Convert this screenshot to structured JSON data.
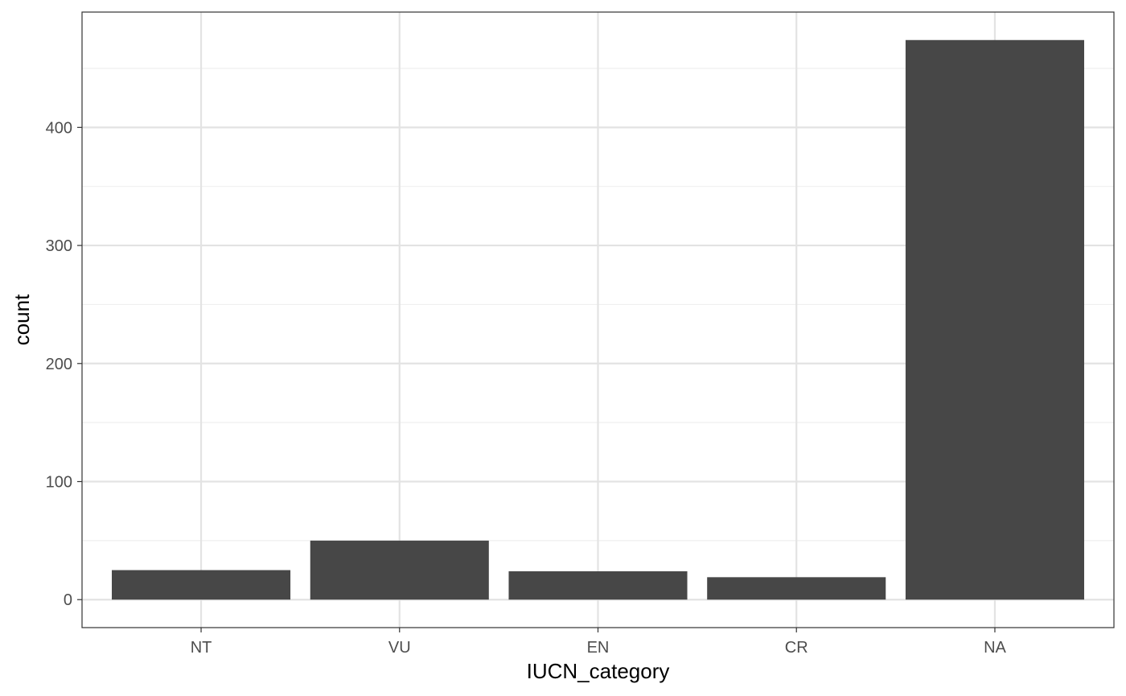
{
  "chart_data": {
    "type": "bar",
    "categories": [
      "NT",
      "VU",
      "EN",
      "CR",
      "NA"
    ],
    "values": [
      25,
      50,
      24,
      19,
      474
    ],
    "xlabel": "IUCN_category",
    "ylabel": "count",
    "ylim": [
      -23.7,
      497.7
    ],
    "yticks": [
      0,
      100,
      200,
      300,
      400
    ],
    "grid": true,
    "bar_color": "#474747",
    "grid_major_color": "#e3e3e3",
    "grid_minor_color": "#efefef",
    "panel_border_color": "#333333"
  }
}
